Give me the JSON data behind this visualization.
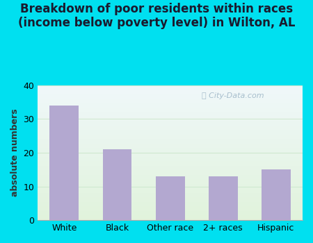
{
  "categories": [
    "White",
    "Black",
    "Other race",
    "2+ races",
    "Hispanic"
  ],
  "values": [
    34,
    21,
    13,
    13,
    15
  ],
  "bar_color": "#b3a8d0",
  "title_line1": "Breakdown of poor residents within races",
  "title_line2": "(income below poverty level) in Wilton, AL",
  "ylabel": "absolute numbers",
  "ylim": [
    0,
    40
  ],
  "yticks": [
    0,
    10,
    20,
    30,
    40
  ],
  "background_outer": "#00e0f0",
  "grid_color": "#d0e8d0",
  "title_fontsize": 12,
  "ylabel_fontsize": 9,
  "tick_fontsize": 9,
  "bar_width": 0.55,
  "watermark": "City-Data.com"
}
